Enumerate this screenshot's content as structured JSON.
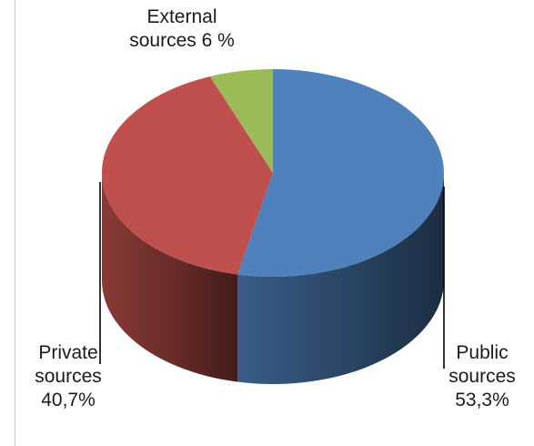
{
  "chart_data": {
    "type": "pie",
    "title": "",
    "slices": [
      {
        "name_lines": [
          "Public",
          "sources"
        ],
        "value_text": "53,3%",
        "value": 53.3,
        "color": "#4f81bd"
      },
      {
        "name_lines": [
          "Private",
          "sources"
        ],
        "value_text": "40,7%",
        "value": 40.7,
        "color": "#c0504d"
      },
      {
        "name_lines": [
          "External",
          "sources 6 %"
        ],
        "value_text": "",
        "value": 6,
        "color": "#9bbb59"
      }
    ],
    "legend": "none",
    "style": "3d-pie"
  }
}
